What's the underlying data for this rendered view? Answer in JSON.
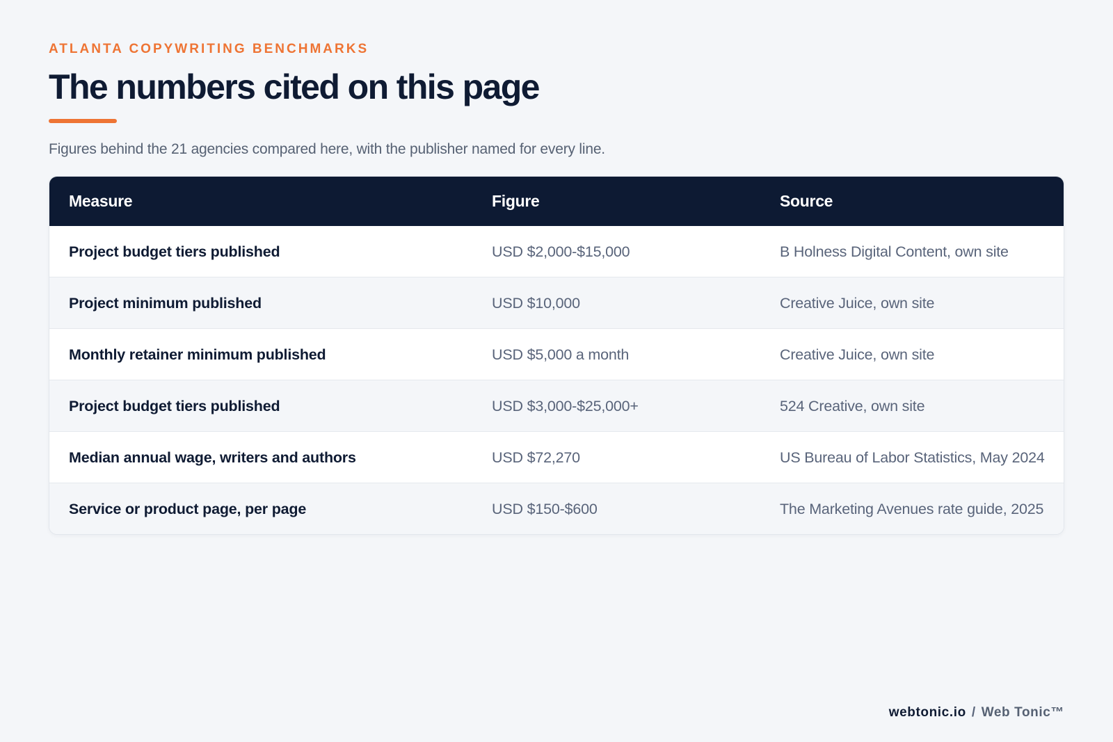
{
  "header": {
    "eyebrow": "ATLANTA COPYWRITING BENCHMARKS",
    "title": "The numbers cited on this page",
    "subtitle": "Figures behind the 21 agencies compared here, with the publisher named for every line."
  },
  "table": {
    "columns": [
      "Measure",
      "Figure",
      "Source"
    ],
    "rows": [
      {
        "measure": "Project budget tiers published",
        "figure": "USD $2,000-$15,000",
        "source": "B Holness Digital Content, own site"
      },
      {
        "measure": "Project minimum published",
        "figure": "USD $10,000",
        "source": "Creative Juice, own site"
      },
      {
        "measure": "Monthly retainer minimum published",
        "figure": "USD $5,000 a month",
        "source": "Creative Juice, own site"
      },
      {
        "measure": "Project budget tiers published",
        "figure": "USD $3,000-$25,000+",
        "source": "524 Creative, own site"
      },
      {
        "measure": "Median annual wage, writers and authors",
        "figure": "USD $72,270",
        "source": "US Bureau of Labor Statistics, May 2024"
      },
      {
        "measure": "Service or product page, per page",
        "figure": "USD $150-$600",
        "source": "The Marketing Avenues rate guide, 2025"
      }
    ]
  },
  "footer": {
    "domain": "webtonic.io",
    "separator": "/",
    "brand": "Web Tonic™"
  },
  "colors": {
    "accent": "#ee7434",
    "header_bg": "#0d1a33",
    "text_dark": "#0f1b33",
    "text_muted": "#59647a",
    "page_bg": "#f4f6f9"
  }
}
